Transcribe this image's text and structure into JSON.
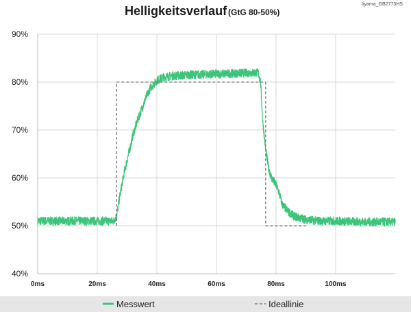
{
  "chart_data": {
    "type": "line",
    "title": "Helligkeitsverlauf",
    "subtitle": "(GtG 80-50%)",
    "model_label": "Iiyama_GB2773HS",
    "xlabel": "",
    "ylabel": "",
    "xlim": [
      0,
      120
    ],
    "ylim": [
      40,
      90
    ],
    "x_ticks": [
      0,
      20,
      40,
      60,
      80,
      100
    ],
    "x_tick_labels": [
      "0ms",
      "20ms",
      "40ms",
      "60ms",
      "80ms",
      "100ms"
    ],
    "y_ticks": [
      40,
      50,
      60,
      70,
      80,
      90
    ],
    "y_tick_labels": [
      "40%",
      "50%",
      "60%",
      "70%",
      "80%",
      "90%"
    ],
    "grid": true,
    "legend_position": "bottom",
    "series": [
      {
        "name": "Messwert",
        "style": "solid",
        "color": "#3cc47a",
        "points": [
          [
            0,
            51
          ],
          [
            25.5,
            51
          ],
          [
            26.5,
            52
          ],
          [
            27.5,
            56
          ],
          [
            29,
            61
          ],
          [
            30.5,
            65
          ],
          [
            32,
            69
          ],
          [
            33.5,
            72
          ],
          [
            35,
            74.5
          ],
          [
            36.5,
            77
          ],
          [
            38,
            79
          ],
          [
            40,
            80.3
          ],
          [
            42,
            81
          ],
          [
            45,
            81.3
          ],
          [
            50,
            81.5
          ],
          [
            55,
            81.6
          ],
          [
            60,
            81.7
          ],
          [
            65,
            81.8
          ],
          [
            70,
            81.9
          ],
          [
            74,
            82
          ],
          [
            74.8,
            80
          ],
          [
            75.5,
            72
          ],
          [
            76.5,
            66
          ],
          [
            77.5,
            62
          ],
          [
            78.5,
            60
          ],
          [
            80,
            58.5
          ],
          [
            81,
            57
          ],
          [
            82,
            54.5
          ],
          [
            84,
            53
          ],
          [
            86,
            52
          ],
          [
            90,
            51.3
          ],
          [
            95,
            51
          ],
          [
            100,
            51
          ],
          [
            110,
            50.8
          ],
          [
            120,
            50.8
          ]
        ]
      },
      {
        "name": "Ideallinie",
        "style": "dashed",
        "color": "#777777",
        "points": [
          [
            26.5,
            50
          ],
          [
            26.5,
            80
          ],
          [
            76.5,
            80
          ],
          [
            76.5,
            50
          ],
          [
            90,
            50
          ]
        ]
      }
    ]
  }
}
